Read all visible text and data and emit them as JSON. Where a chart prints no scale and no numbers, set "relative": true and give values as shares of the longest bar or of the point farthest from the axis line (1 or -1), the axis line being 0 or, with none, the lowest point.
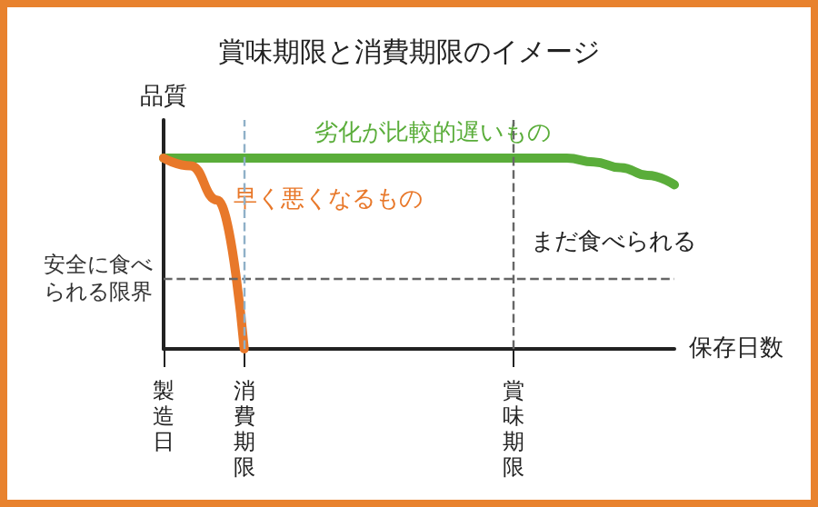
{
  "chart_data": {
    "type": "line",
    "title": "賞味期限と消費期限のイメージ",
    "xlabel": "保存日数",
    "ylabel": "品質",
    "relative": true,
    "legend": false,
    "grid": false,
    "marker": "none",
    "categories": [
      "製造日",
      null,
      null,
      "消費期限",
      null,
      null,
      null,
      null,
      null,
      null,
      null,
      null,
      null,
      "賞味期限",
      null,
      null,
      null,
      null,
      null,
      null
    ],
    "series": [
      {
        "name": "劣化が比較的遅いもの",
        "color": "#5aad3a",
        "values": [
          1,
          1,
          1,
          1,
          1,
          1,
          1,
          1,
          1,
          1,
          1,
          1,
          1,
          1,
          1,
          1,
          0.98,
          0.95,
          0.91,
          0.86
        ]
      },
      {
        "name": "早く悪くなるもの",
        "color": "#e8782a",
        "values": [
          1,
          0.96,
          0.78,
          0,
          null,
          null,
          null,
          null,
          null,
          null,
          null,
          null,
          null,
          null,
          null,
          null,
          null,
          null,
          null,
          null
        ]
      }
    ],
    "ref_lines": [
      {
        "axis": "y",
        "value": 0.37,
        "label": "安全に食べられる限界",
        "color": "#666666",
        "line_style": "dashed"
      },
      {
        "axis": "x",
        "value": "賞味期限",
        "color": "#666666",
        "line_style": "dashed"
      },
      {
        "axis": "x",
        "value": "消費期限",
        "color": "#8fb0c8",
        "line_style": "dashed"
      }
    ],
    "annotations": [
      "まだ食べられる"
    ]
  }
}
